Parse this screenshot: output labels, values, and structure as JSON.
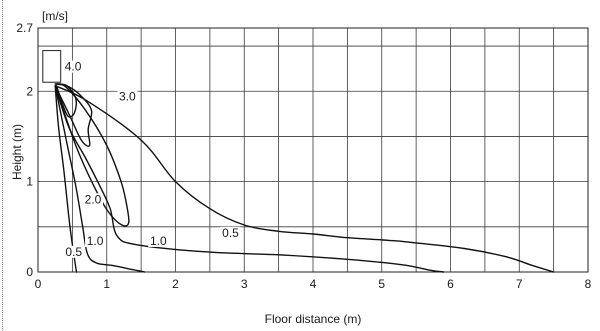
{
  "chart_data": {
    "type": "line",
    "unit_label": "[m/s]",
    "xlabel": "Floor distance (m)",
    "ylabel": "Height (m)",
    "xlim": [
      0,
      8
    ],
    "ylim": [
      0,
      2.7
    ],
    "grid": true,
    "x_ticks": [
      "0",
      "1",
      "2",
      "3",
      "4",
      "5",
      "6",
      "7",
      "8"
    ],
    "y_ticks": [
      {
        "value": 0,
        "label": "0"
      },
      {
        "value": 1,
        "label": "1"
      },
      {
        "value": 2,
        "label": "2"
      },
      {
        "value": 2.7,
        "label": "2.7"
      }
    ],
    "unit_box": {
      "x_range": [
        0.07,
        0.33
      ],
      "y_range": [
        2.1,
        2.45
      ]
    },
    "series": [
      {
        "name": "4.0",
        "points": [
          [
            0.27,
            2.06
          ],
          [
            0.36,
            1.85
          ],
          [
            0.44,
            1.72
          ],
          [
            0.53,
            1.76
          ],
          [
            0.55,
            1.92
          ],
          [
            0.42,
            2.06
          ],
          [
            0.27,
            2.08
          ]
        ]
      },
      {
        "name": "3.0",
        "points": [
          [
            0.25,
            2.06
          ],
          [
            0.45,
            1.75
          ],
          [
            0.63,
            1.46
          ],
          [
            0.75,
            1.4
          ],
          [
            0.73,
            1.58
          ],
          [
            0.78,
            1.78
          ],
          [
            0.65,
            1.93
          ],
          [
            0.45,
            2.05
          ],
          [
            0.25,
            2.08
          ]
        ]
      },
      {
        "name": "2.0",
        "points": [
          [
            0.25,
            2.06
          ],
          [
            0.55,
            1.4
          ],
          [
            0.8,
            0.97
          ],
          [
            1.02,
            0.67
          ],
          [
            1.22,
            0.52
          ],
          [
            1.32,
            0.55
          ],
          [
            1.28,
            0.78
          ],
          [
            1.2,
            1.02
          ],
          [
            1.0,
            1.4
          ],
          [
            0.7,
            1.78
          ],
          [
            0.4,
            2.05
          ],
          [
            0.25,
            2.08
          ]
        ]
      },
      {
        "name": "1.0",
        "points": [
          [
            0.25,
            2.06
          ],
          [
            0.45,
            1.6
          ],
          [
            0.7,
            1.25
          ],
          [
            0.9,
            0.95
          ],
          [
            1.05,
            0.7
          ],
          [
            1.15,
            0.4
          ],
          [
            1.45,
            0.3
          ],
          [
            2.5,
            0.22
          ],
          [
            3.5,
            0.19
          ],
          [
            4.5,
            0.14
          ],
          [
            5.3,
            0.08
          ],
          [
            5.7,
            0.02
          ],
          [
            5.9,
            0
          ]
        ]
      },
      {
        "name": "1.0",
        "points": [
          [
            0.25,
            2.06
          ],
          [
            0.4,
            1.5
          ],
          [
            0.55,
            0.95
          ],
          [
            0.65,
            0.5
          ],
          [
            0.72,
            0.2
          ],
          [
            0.85,
            0.1
          ],
          [
            1.1,
            0.07
          ],
          [
            1.35,
            0.03
          ],
          [
            1.55,
            0
          ]
        ]
      },
      {
        "name": "0.5",
        "points": [
          [
            0.25,
            2.06
          ],
          [
            0.7,
            1.9
          ],
          [
            1.5,
            1.46
          ],
          [
            2.0,
            1.0
          ],
          [
            2.5,
            0.7
          ],
          [
            3.0,
            0.52
          ],
          [
            3.5,
            0.45
          ],
          [
            4.0,
            0.42
          ],
          [
            4.5,
            0.38
          ],
          [
            5.1,
            0.35
          ],
          [
            5.4,
            0.33
          ],
          [
            6.2,
            0.26
          ],
          [
            6.8,
            0.17
          ],
          [
            7.2,
            0.07
          ],
          [
            7.5,
            0
          ]
        ]
      },
      {
        "name": "0.5",
        "points": [
          [
            0.25,
            2.06
          ],
          [
            0.3,
            1.6
          ],
          [
            0.38,
            1.1
          ],
          [
            0.45,
            0.6
          ],
          [
            0.5,
            0.3
          ],
          [
            0.56,
            0
          ]
        ]
      }
    ],
    "labels": [
      {
        "text": "4.0",
        "x": 0.51,
        "y": 2.24
      },
      {
        "text": "3.0",
        "x": 1.3,
        "y": 1.91
      },
      {
        "text": "2.0",
        "x": 0.8,
        "y": 0.77
      },
      {
        "text": "1.0",
        "x": 0.83,
        "y": 0.31
      },
      {
        "text": "1.0",
        "x": 1.75,
        "y": 0.31
      },
      {
        "text": "0.5",
        "x": 2.8,
        "y": 0.4
      },
      {
        "text": "0.5",
        "x": 0.52,
        "y": 0.19
      }
    ]
  }
}
